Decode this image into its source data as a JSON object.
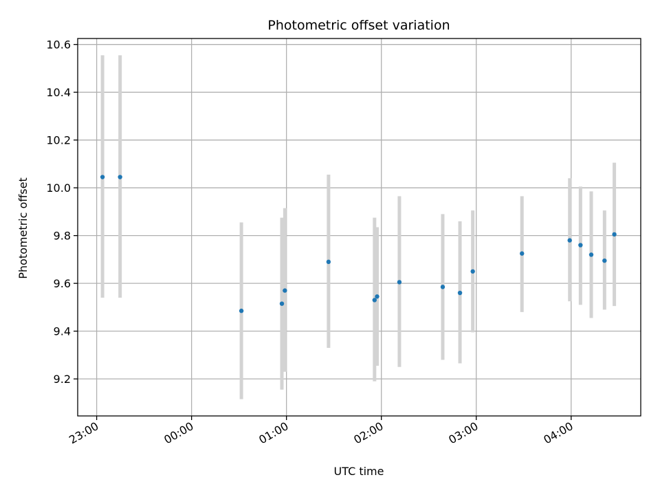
{
  "chart_data": {
    "type": "scatter",
    "title": "Photometric offset variation",
    "xlabel": "UTC time",
    "ylabel": "Photometric offset",
    "x_tick_labels": [
      "23:00",
      "00:00",
      "01:00",
      "02:00",
      "03:00",
      "04:00"
    ],
    "x_tick_values": [
      -60,
      0,
      60,
      120,
      180,
      240
    ],
    "xlim": [
      -72,
      284
    ],
    "y_ticks": [
      9.2,
      9.4,
      9.6,
      9.8,
      10.0,
      10.2,
      10.4,
      10.6
    ],
    "y_tick_labels": [
      "9.2",
      "9.4",
      "9.6",
      "9.8",
      "10.0",
      "10.2",
      "10.4",
      "10.6"
    ],
    "ylim": [
      9.045,
      10.625
    ],
    "grid": true,
    "point_color": "#1f77b4",
    "errorbar_color": "#d3d3d3",
    "grid_color": "#b0b0b0",
    "points": [
      {
        "x": -56.3,
        "y": 10.045,
        "lo": 9.54,
        "hi": 10.555
      },
      {
        "x": -45.2,
        "y": 10.045,
        "lo": 9.54,
        "hi": 10.555
      },
      {
        "x": 31.5,
        "y": 9.485,
        "lo": 9.115,
        "hi": 9.855
      },
      {
        "x": 57.1,
        "y": 9.515,
        "lo": 9.155,
        "hi": 9.875
      },
      {
        "x": 59.0,
        "y": 9.57,
        "lo": 9.23,
        "hi": 9.915
      },
      {
        "x": 86.6,
        "y": 9.69,
        "lo": 9.33,
        "hi": 10.055
      },
      {
        "x": 115.7,
        "y": 9.53,
        "lo": 9.19,
        "hi": 9.875
      },
      {
        "x": 117.3,
        "y": 9.545,
        "lo": 9.255,
        "hi": 9.835
      },
      {
        "x": 131.4,
        "y": 9.605,
        "lo": 9.25,
        "hi": 9.965
      },
      {
        "x": 158.8,
        "y": 9.585,
        "lo": 9.28,
        "hi": 9.89
      },
      {
        "x": 169.7,
        "y": 9.56,
        "lo": 9.265,
        "hi": 9.86
      },
      {
        "x": 177.8,
        "y": 9.65,
        "lo": 9.395,
        "hi": 9.905
      },
      {
        "x": 208.9,
        "y": 9.725,
        "lo": 9.48,
        "hi": 9.965
      },
      {
        "x": 239.1,
        "y": 9.78,
        "lo": 9.525,
        "hi": 10.04
      },
      {
        "x": 245.9,
        "y": 9.76,
        "lo": 9.51,
        "hi": 10.005
      },
      {
        "x": 252.7,
        "y": 9.72,
        "lo": 9.455,
        "hi": 9.985
      },
      {
        "x": 261.1,
        "y": 9.695,
        "lo": 9.49,
        "hi": 9.905
      },
      {
        "x": 267.3,
        "y": 9.805,
        "lo": 9.505,
        "hi": 10.105
      }
    ]
  }
}
